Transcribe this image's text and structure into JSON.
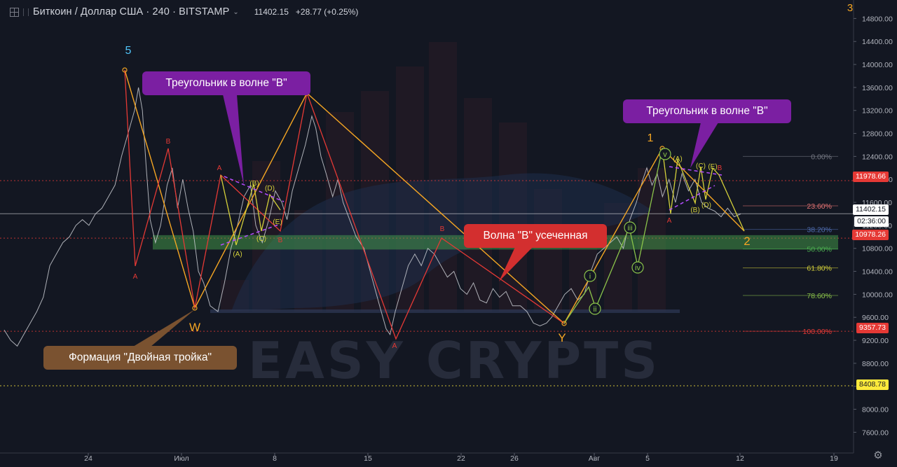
{
  "header": {
    "title": "Биткоин / Доллар США · 240 · BITSTAMP",
    "price": "11402.15",
    "change": "+28.77 (+0.25%)"
  },
  "watermark": "EASY CRYPTS",
  "colors": {
    "background": "#131722",
    "price_line": "#c9cbd1",
    "wave_orange": "#f5a623",
    "wave_red": "#e53935",
    "wave_yellow": "#d4d03a",
    "wave_green": "#8bc34a",
    "triangle_purple": "#b54dff",
    "support_zone": "#4caf50",
    "callout_purple": "#7b1fa2",
    "callout_red": "#d32f2f",
    "callout_brown": "#7a5230"
  },
  "callouts": [
    {
      "id": "triangle-left",
      "text": "Треугольник в волне \"B\""
    },
    {
      "id": "triangle-right",
      "text": "Треугольник в волне \"B\""
    },
    {
      "id": "wave-b-truncated",
      "text": "Волна \"B\" усеченная"
    },
    {
      "id": "double-three",
      "text": "Формация \"Двойная тройка\""
    }
  ],
  "price_labels": [
    {
      "value": "11978.66",
      "kind": "red"
    },
    {
      "value": "11402.15",
      "kind": "current"
    },
    {
      "value": "02:36:00",
      "kind": "timer"
    },
    {
      "value": "10978.26",
      "kind": "red"
    },
    {
      "value": "9357.73",
      "kind": "red"
    },
    {
      "value": "8408.78",
      "kind": "yellow"
    }
  ],
  "chart_data": {
    "type": "line",
    "symbol": "BTCUSD",
    "interval": "240",
    "x_ticks": [
      "24",
      "Июл",
      "8",
      "15",
      "22",
      "26",
      "Авг",
      "5",
      "12",
      "19"
    ],
    "y_ticks": [
      "14800.00",
      "14400.00",
      "14000.00",
      "13600.00",
      "13200.00",
      "12800.00",
      "12400.00",
      "12000.00",
      "11600.00",
      "11200.00",
      "10800.00",
      "10400.00",
      "10000.00",
      "9600.00",
      "9200.00",
      "8800.00",
      "8400.00",
      "8000.00",
      "7600.00"
    ],
    "ylim": [
      7300,
      15000
    ],
    "fibonacci": [
      {
        "label": "0.00%",
        "price": 12400
      },
      {
        "label": "23.60%",
        "price": 11540
      },
      {
        "label": "38.20%",
        "price": 11130
      },
      {
        "label": "50.00%",
        "price": 10790
      },
      {
        "label": "61.80%",
        "price": 10460
      },
      {
        "label": "78.60%",
        "price": 9980
      },
      {
        "label": "100.00%",
        "price": 9357.73
      }
    ],
    "horizontal_levels": [
      11978.66,
      11402.15,
      10978.26,
      9357.73,
      8408.78
    ],
    "support_zone": [
      10780,
      11030
    ],
    "price_series": [
      [
        0,
        9380
      ],
      [
        0.5,
        9200
      ],
      [
        1,
        9100
      ],
      [
        1.5,
        9300
      ],
      [
        2,
        9500
      ],
      [
        2.5,
        9700
      ],
      [
        3,
        9950
      ],
      [
        3.5,
        10500
      ],
      [
        4,
        10700
      ],
      [
        4.5,
        10900
      ],
      [
        5,
        11000
      ],
      [
        5.5,
        11200
      ],
      [
        6,
        11300
      ],
      [
        6.5,
        11200
      ],
      [
        7,
        11400
      ],
      [
        7.5,
        11500
      ],
      [
        8,
        11700
      ],
      [
        8.5,
        11900
      ],
      [
        9,
        12400
      ],
      [
        9.5,
        12800
      ],
      [
        10,
        13200
      ],
      [
        10.3,
        13600
      ],
      [
        10.6,
        13200
      ],
      [
        10.9,
        12200
      ],
      [
        11.2,
        11300
      ],
      [
        11.6,
        10900
      ],
      [
        12,
        11200
      ],
      [
        12.5,
        11900
      ],
      [
        12.9,
        12200
      ],
      [
        13.3,
        11500
      ],
      [
        13.7,
        12000
      ],
      [
        14.1,
        11500
      ],
      [
        14.5,
        11100
      ],
      [
        14.9,
        10400
      ],
      [
        15.3,
        10200
      ],
      [
        15.8,
        9800
      ],
      [
        16.4,
        9700
      ],
      [
        16.9,
        10200
      ],
      [
        17.4,
        10800
      ],
      [
        17.9,
        11200
      ],
      [
        18.4,
        11700
      ],
      [
        18.9,
        11900
      ],
      [
        19.3,
        11200
      ],
      [
        19.8,
        10900
      ],
      [
        20.3,
        11300
      ],
      [
        20.8,
        11800
      ],
      [
        21.3,
        11600
      ],
      [
        21.7,
        11300
      ],
      [
        22.1,
        11800
      ],
      [
        22.6,
        12200
      ],
      [
        23.1,
        12600
      ],
      [
        23.6,
        13100
      ],
      [
        23.9,
        12900
      ],
      [
        24.3,
        12400
      ],
      [
        24.7,
        12100
      ],
      [
        25.2,
        11700
      ],
      [
        25.6,
        12000
      ],
      [
        26,
        11600
      ],
      [
        26.5,
        11300
      ],
      [
        27,
        11000
      ],
      [
        27.6,
        10800
      ],
      [
        28.2,
        10300
      ],
      [
        28.8,
        9800
      ],
      [
        29.3,
        9400
      ],
      [
        29.6,
        9300
      ],
      [
        30,
        9700
      ],
      [
        30.5,
        10100
      ],
      [
        31,
        10500
      ],
      [
        31.5,
        10700
      ],
      [
        32,
        10500
      ],
      [
        32.5,
        10800
      ],
      [
        33,
        10700
      ],
      [
        33.5,
        10500
      ],
      [
        34,
        10300
      ],
      [
        34.5,
        10400
      ],
      [
        35,
        10100
      ],
      [
        35.5,
        10000
      ],
      [
        36,
        10200
      ],
      [
        36.5,
        9900
      ],
      [
        37,
        9850
      ],
      [
        37.5,
        10100
      ],
      [
        38,
        9950
      ],
      [
        38.5,
        10050
      ],
      [
        39,
        9800
      ],
      [
        39.6,
        9800
      ],
      [
        40.1,
        9700
      ],
      [
        40.6,
        9500
      ],
      [
        41.1,
        9450
      ],
      [
        41.6,
        9500
      ],
      [
        42,
        9600
      ],
      [
        42.5,
        9800
      ],
      [
        43,
        10000
      ],
      [
        43.5,
        10100
      ],
      [
        44,
        9900
      ],
      [
        44.5,
        10000
      ],
      [
        45,
        10400
      ],
      [
        45.5,
        10700
      ],
      [
        46,
        10800
      ],
      [
        46.5,
        10900
      ],
      [
        47,
        11000
      ],
      [
        47.5,
        10800
      ],
      [
        48,
        11300
      ],
      [
        48.5,
        11600
      ],
      [
        49,
        12000
      ],
      [
        49.3,
        12200
      ],
      [
        49.7,
        11900
      ],
      [
        50.1,
        12100
      ],
      [
        50.5,
        11700
      ],
      [
        51,
        12000
      ],
      [
        51.5,
        11600
      ],
      [
        52,
        12100
      ],
      [
        52.5,
        11800
      ],
      [
        53,
        12000
      ],
      [
        53.5,
        11600
      ],
      [
        54,
        11500
      ],
      [
        54.5,
        11450
      ],
      [
        55,
        11350
      ],
      [
        55.5,
        11500
      ],
      [
        56,
        11350
      ],
      [
        56.5,
        11400
      ]
    ],
    "x_range": [
      0,
      65
    ]
  }
}
